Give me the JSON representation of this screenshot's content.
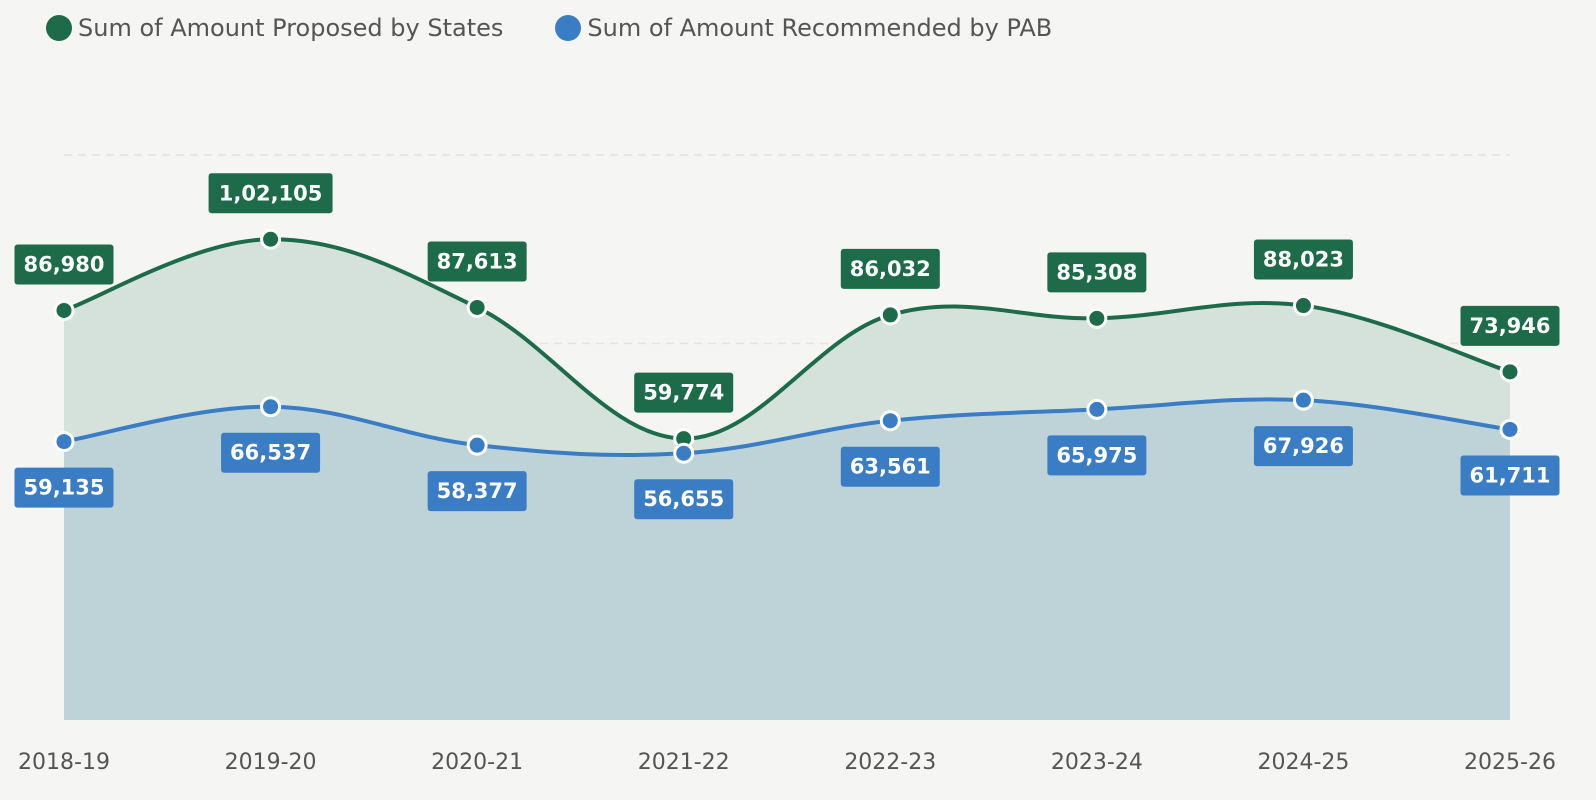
{
  "legend": {
    "proposed_label": "Sum of Amount Proposed by States",
    "recommended_label": "Sum of Amount Recommended by PAB"
  },
  "colors": {
    "proposed": "#1e6b4a",
    "recommended": "#3b7dc4",
    "proposed_area": "#d5e2dc",
    "recommended_area": "#bed3d7",
    "background": "#f5f5f3"
  },
  "chart_data": {
    "type": "area",
    "categories": [
      "2018-19",
      "2019-20",
      "2020-21",
      "2021-22",
      "2022-23",
      "2023-24",
      "2024-25",
      "2025-26"
    ],
    "series": [
      {
        "name": "Sum of Amount Proposed by States",
        "values": [
          86980,
          102105,
          87613,
          59774,
          86032,
          85308,
          88023,
          73946
        ],
        "labels": [
          "86,980",
          "1,02,105",
          "87,613",
          "59,774",
          "86,032",
          "85,308",
          "88,023",
          "73,946"
        ]
      },
      {
        "name": "Sum of Amount Recommended by PAB",
        "values": [
          59135,
          66537,
          58377,
          56655,
          63561,
          65975,
          67926,
          61711
        ],
        "labels": [
          "59,135",
          "66,537",
          "58,377",
          "56,655",
          "63,561",
          "65,975",
          "67,926",
          "61,711"
        ]
      }
    ],
    "ylim": [
      0,
      120000
    ],
    "grid": true,
    "legend_position": "top-left"
  }
}
